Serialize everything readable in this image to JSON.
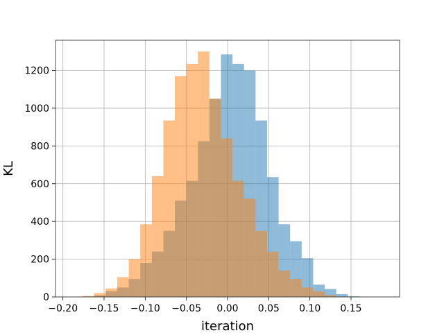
{
  "chart_data": {
    "type": "histogram",
    "title": "",
    "xlabel": "iteration",
    "ylabel": "KL",
    "xlim": [
      -0.2,
      0.2
    ],
    "ylim": [
      0,
      1360
    ],
    "xticks": [
      -0.2,
      -0.15,
      -0.1,
      -0.05,
      0.0,
      0.05,
      0.1,
      0.15
    ],
    "xtick_labels": [
      "−0.20",
      "−0.15",
      "−0.10",
      "−0.05",
      "0.00",
      "0.05",
      "0.10",
      "0.15"
    ],
    "yticks": [
      0,
      200,
      400,
      600,
      800,
      1000,
      1200
    ],
    "ytick_labels": [
      "0",
      "200",
      "400",
      "600",
      "800",
      "1000",
      "1200"
    ],
    "grid": true,
    "legend": false,
    "series": [
      {
        "color": "#1f77b4",
        "alpha": 0.5,
        "bins": [
          {
            "x0": -0.162,
            "x1": -0.148,
            "count": 8
          },
          {
            "x0": -0.148,
            "x1": -0.134,
            "count": 30
          },
          {
            "x0": -0.134,
            "x1": -0.12,
            "count": 50
          },
          {
            "x0": -0.12,
            "x1": -0.106,
            "count": 95
          },
          {
            "x0": -0.106,
            "x1": -0.092,
            "count": 180
          },
          {
            "x0": -0.092,
            "x1": -0.078,
            "count": 240
          },
          {
            "x0": -0.078,
            "x1": -0.064,
            "count": 350
          },
          {
            "x0": -0.064,
            "x1": -0.05,
            "count": 510
          },
          {
            "x0": -0.05,
            "x1": -0.036,
            "count": 615
          },
          {
            "x0": -0.036,
            "x1": -0.022,
            "count": 825
          },
          {
            "x0": -0.022,
            "x1": -0.008,
            "count": 1050
          },
          {
            "x0": -0.008,
            "x1": 0.006,
            "count": 1285
          },
          {
            "x0": 0.006,
            "x1": 0.02,
            "count": 1235
          },
          {
            "x0": 0.02,
            "x1": 0.034,
            "count": 1200
          },
          {
            "x0": 0.034,
            "x1": 0.048,
            "count": 935
          },
          {
            "x0": 0.048,
            "x1": 0.062,
            "count": 635
          },
          {
            "x0": 0.062,
            "x1": 0.076,
            "count": 385
          },
          {
            "x0": 0.076,
            "x1": 0.09,
            "count": 295
          },
          {
            "x0": 0.09,
            "x1": 0.104,
            "count": 205
          },
          {
            "x0": 0.104,
            "x1": 0.118,
            "count": 65
          },
          {
            "x0": 0.118,
            "x1": 0.132,
            "count": 42
          },
          {
            "x0": 0.132,
            "x1": 0.146,
            "count": 15
          },
          {
            "x0": 0.146,
            "x1": 0.16,
            "count": 3
          }
        ]
      },
      {
        "color": "#ff7f0e",
        "alpha": 0.5,
        "bins": [
          {
            "x0": -0.176,
            "x1": -0.162,
            "count": 5
          },
          {
            "x0": -0.162,
            "x1": -0.148,
            "count": 20
          },
          {
            "x0": -0.148,
            "x1": -0.134,
            "count": 45
          },
          {
            "x0": -0.134,
            "x1": -0.12,
            "count": 105
          },
          {
            "x0": -0.12,
            "x1": -0.106,
            "count": 200
          },
          {
            "x0": -0.106,
            "x1": -0.092,
            "count": 385
          },
          {
            "x0": -0.092,
            "x1": -0.078,
            "count": 640
          },
          {
            "x0": -0.078,
            "x1": -0.064,
            "count": 935
          },
          {
            "x0": -0.064,
            "x1": -0.05,
            "count": 1170
          },
          {
            "x0": -0.05,
            "x1": -0.036,
            "count": 1235
          },
          {
            "x0": -0.036,
            "x1": -0.022,
            "count": 1300
          },
          {
            "x0": -0.022,
            "x1": -0.008,
            "count": 1050
          },
          {
            "x0": -0.008,
            "x1": 0.006,
            "count": 840
          },
          {
            "x0": 0.006,
            "x1": 0.02,
            "count": 615
          },
          {
            "x0": 0.02,
            "x1": 0.034,
            "count": 520
          },
          {
            "x0": 0.034,
            "x1": 0.048,
            "count": 350
          },
          {
            "x0": 0.048,
            "x1": 0.062,
            "count": 240
          },
          {
            "x0": 0.062,
            "x1": 0.076,
            "count": 140
          },
          {
            "x0": 0.076,
            "x1": 0.09,
            "count": 95
          },
          {
            "x0": 0.09,
            "x1": 0.104,
            "count": 50
          },
          {
            "x0": 0.104,
            "x1": 0.118,
            "count": 30
          },
          {
            "x0": 0.118,
            "x1": 0.132,
            "count": 10
          }
        ]
      }
    ]
  }
}
